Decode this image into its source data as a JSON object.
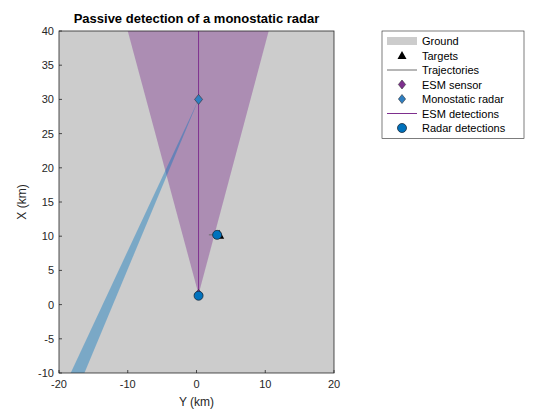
{
  "chart_data": {
    "type": "scatter",
    "title": "Passive detection of a monostatic radar",
    "x_label": "Y (km)",
    "y_label": "X (km)",
    "xlim": [
      -20,
      20
    ],
    "ylim": [
      -10,
      40
    ],
    "xticks": [
      -20,
      -10,
      0,
      10,
      20
    ],
    "yticks": [
      -10,
      -5,
      0,
      5,
      10,
      15,
      20,
      25,
      30,
      35,
      40
    ],
    "legend": "northeastoutside",
    "series": [
      {
        "name": "Ground",
        "type": "area",
        "color": "#cccccc",
        "x": [
          -20,
          20,
          20,
          -20
        ],
        "y": [
          -10,
          -10,
          40,
          40
        ]
      },
      {
        "name": "Targets",
        "type": "scatter",
        "marker": "triangle",
        "color": "#000000",
        "x": [
          3.3
        ],
        "y": [
          10.2
        ]
      },
      {
        "name": "Trajectories",
        "type": "line",
        "line_style": "solid",
        "color": "#6e6e6e",
        "x": [
          1.8,
          3.3
        ],
        "y": [
          10.2,
          10.2
        ]
      },
      {
        "name": "ESM sensor",
        "type": "scatter",
        "marker": "diamond",
        "color": "#7e2f8e",
        "x": [
          0.3
        ],
        "y": [
          1.5
        ]
      },
      {
        "name": "Monostatic radar",
        "type": "scatter",
        "marker": "diamond",
        "color": "#2f7fc1",
        "x": [
          0.3
        ],
        "y": [
          30
        ]
      },
      {
        "name": "ESM detections",
        "type": "line",
        "line_style": "solid",
        "color": "#7e2f8e",
        "x": [
          0.3,
          0.3
        ],
        "y": [
          1.5,
          40
        ]
      },
      {
        "name": "Radar detections",
        "type": "scatter",
        "marker": "circle",
        "color": "#0072bd",
        "x": [
          0.3,
          3.0
        ],
        "y": [
          1.3,
          10.2
        ]
      }
    ],
    "coverage": [
      {
        "color": "#7e2f8e",
        "x": [
          0.3,
          -10,
          10.5
        ],
        "y": [
          1.5,
          40,
          40
        ]
      },
      {
        "color": "#0072bd",
        "x": [
          0.3,
          -18.3,
          -16.3
        ],
        "y": [
          30,
          -10,
          -10
        ]
      }
    ]
  }
}
